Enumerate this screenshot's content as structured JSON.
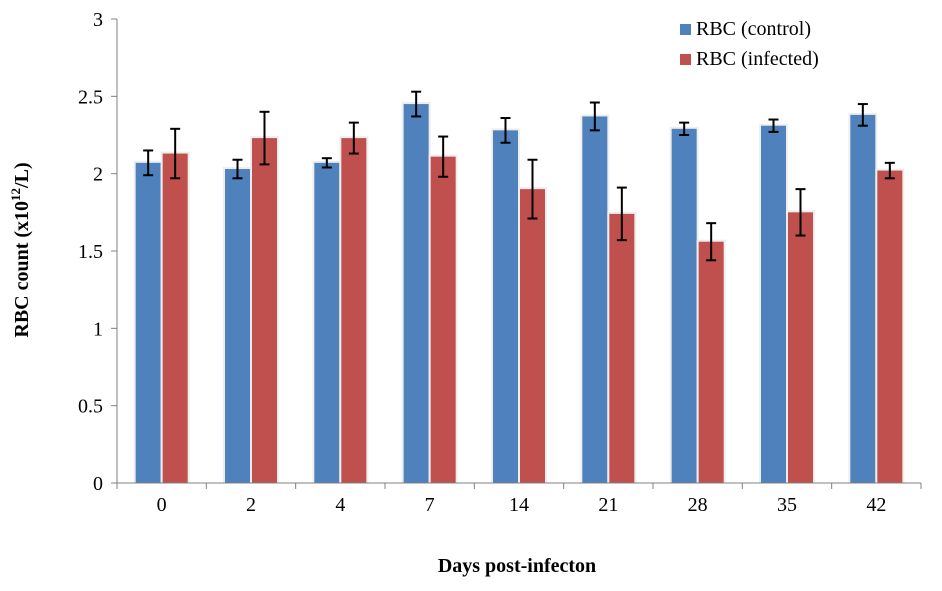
{
  "chart_data": {
    "type": "bar",
    "xlabel": "Days post-infecton",
    "ylabel_main": "RBC count (x10",
    "ylabel_sup": "12",
    "ylabel_end": "/L)",
    "categories": [
      "0",
      "2",
      "4",
      "7",
      "14",
      "21",
      "28",
      "35",
      "42"
    ],
    "ylim": [
      0,
      3
    ],
    "yticks": [
      "0",
      "0.5",
      "1",
      "1.5",
      "2",
      "2.5",
      "3"
    ],
    "grid": false,
    "legend_position": "top-right",
    "series": [
      {
        "name": "RBC (control)",
        "color": "#4F81BD",
        "values": [
          2.07,
          2.03,
          2.07,
          2.45,
          2.28,
          2.37,
          2.29,
          2.31,
          2.38
        ],
        "errors": [
          0.08,
          0.06,
          0.03,
          0.08,
          0.08,
          0.09,
          0.04,
          0.04,
          0.07
        ]
      },
      {
        "name": "RBC (infected)",
        "color": "#C0504D",
        "values": [
          2.13,
          2.23,
          2.23,
          2.11,
          1.9,
          1.74,
          1.56,
          1.75,
          2.02
        ],
        "errors": [
          0.16,
          0.17,
          0.1,
          0.13,
          0.19,
          0.17,
          0.12,
          0.15,
          0.05
        ]
      }
    ]
  }
}
